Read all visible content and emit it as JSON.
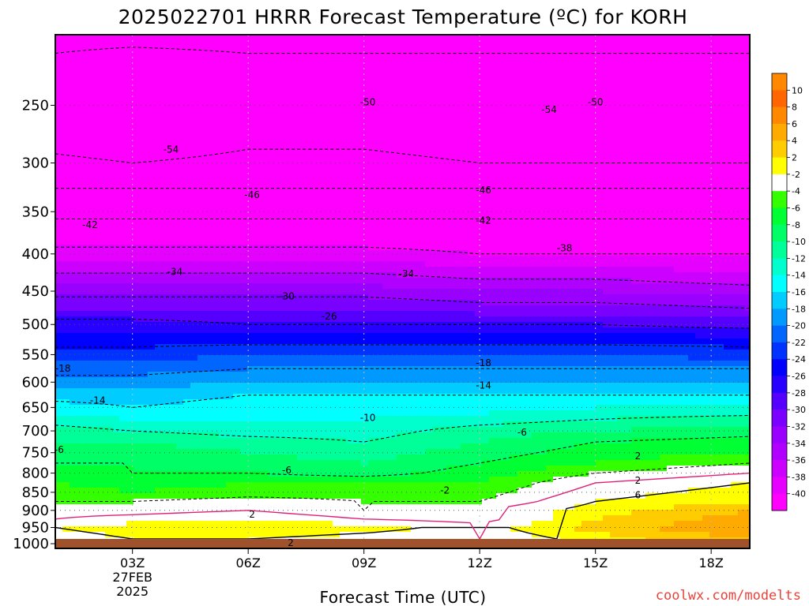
{
  "chart_data": {
    "type": "heatmap",
    "title": "2025022701 HRRR Forecast Temperature (ºC) for KORH",
    "xlabel": "Forecast Time (UTC)",
    "ylabel": "",
    "watermark": "coolwx.com/modelts",
    "x_range_hours": [
      1,
      19
    ],
    "y_range_hpa": [
      1015,
      200
    ],
    "y_scale": "log",
    "x_ticks": [
      {
        "hour": 3,
        "label": "03Z"
      },
      {
        "hour": 6,
        "label": "06Z"
      },
      {
        "hour": 9,
        "label": "09Z"
      },
      {
        "hour": 12,
        "label": "12Z"
      },
      {
        "hour": 15,
        "label": "15Z"
      },
      {
        "hour": 18,
        "label": "18Z"
      }
    ],
    "x_date_label": {
      "hour": 3,
      "lines": [
        "27FEB",
        "2025"
      ]
    },
    "y_ticks": [
      250,
      300,
      350,
      400,
      450,
      500,
      550,
      600,
      650,
      700,
      750,
      800,
      850,
      900,
      950,
      1000
    ],
    "grid": "dotted",
    "surface_pressure_hpa": 985,
    "colorbar": {
      "placement": "right",
      "levels": [
        -40,
        -38,
        -36,
        -34,
        -32,
        -30,
        -28,
        -26,
        -24,
        -22,
        -20,
        -18,
        -16,
        -14,
        -12,
        -10,
        -8,
        -6,
        -4,
        -2,
        2,
        4,
        6,
        8,
        10
      ],
      "colors": [
        "#ff00ff",
        "#e600ff",
        "#cc00ff",
        "#b000ff",
        "#9900ff",
        "#7a00ff",
        "#5500ff",
        "#2800ff",
        "#0000ff",
        "#0033ff",
        "#0066ff",
        "#0099ff",
        "#00ccff",
        "#00ffff",
        "#00ffcc",
        "#00ff99",
        "#00ff66",
        "#00ff33",
        "#33ff00",
        "#ffffff",
        "#ffff00",
        "#ffcc00",
        "#ffaa00",
        "#ff8800",
        "#ff6600"
      ],
      "top_color": "#ff8800"
    },
    "temperature_profile": {
      "pressure_hpa": [
        985,
        950,
        925,
        900,
        875,
        850,
        825,
        800,
        775,
        750,
        725,
        700,
        675,
        650,
        625,
        600,
        575,
        550,
        525,
        500,
        475,
        450,
        425,
        400,
        375,
        350,
        325,
        300,
        275,
        250,
        225,
        200
      ],
      "hours": [
        1,
        3,
        6,
        9,
        12,
        15,
        19
      ],
      "temperature_c": [
        [
          1,
          2,
          2,
          1,
          0,
          3,
          6
        ],
        [
          2,
          3,
          4,
          3,
          1,
          5,
          8
        ],
        [
          0,
          1,
          2,
          0,
          -1,
          4,
          7
        ],
        [
          -1,
          -1,
          0,
          -2,
          0,
          3,
          6
        ],
        [
          -2,
          -2,
          -1,
          -2,
          -2,
          2,
          4
        ],
        [
          -3,
          -4,
          -3,
          -3,
          -3,
          1,
          3
        ],
        [
          -4,
          -5,
          -4,
          -4,
          -4,
          0,
          2
        ],
        [
          -5,
          -6,
          -6,
          -7,
          -5,
          -2,
          0
        ],
        [
          -6,
          -6,
          -7,
          -8,
          -6,
          -4,
          -2
        ],
        [
          -6,
          -7,
          -8,
          -9,
          -7,
          -5,
          -4
        ],
        [
          -8,
          -8,
          -9,
          -10,
          -8,
          -6,
          -5
        ],
        [
          -9,
          -10,
          -11,
          -11,
          -9,
          -8,
          -7
        ],
        [
          -11,
          -12,
          -12,
          -12,
          -11,
          -10,
          -9
        ],
        [
          -13,
          -14,
          -13,
          -13,
          -13,
          -12,
          -12
        ],
        [
          -15,
          -15,
          -14,
          -14,
          -14,
          -14,
          -14
        ],
        [
          -17,
          -17,
          -16,
          -16,
          -16,
          -16,
          -16
        ],
        [
          -19,
          -19,
          -18,
          -18,
          -18,
          -18,
          -18
        ],
        [
          -21,
          -21,
          -20,
          -20,
          -20,
          -20,
          -21
        ],
        [
          -23,
          -23,
          -23,
          -23,
          -23,
          -23,
          -23
        ],
        [
          -25,
          -25,
          -26,
          -26,
          -26,
          -26,
          -27
        ],
        [
          -28,
          -28,
          -28,
          -28,
          -29,
          -29,
          -30
        ],
        [
          -31,
          -31,
          -31,
          -31,
          -32,
          -32,
          -33
        ],
        [
          -34,
          -34,
          -34,
          -34,
          -35,
          -35,
          -36
        ],
        [
          -37,
          -37,
          -37,
          -37,
          -38,
          -38,
          -38
        ],
        [
          -40,
          -40,
          -40,
          -40,
          -40,
          -40,
          -40
        ],
        [
          -43,
          -43,
          -43,
          -43,
          -43,
          -43,
          -43
        ],
        [
          -46,
          -46,
          -46,
          -46,
          -46,
          -46,
          -46
        ],
        [
          -49,
          -50,
          -49,
          -49,
          -50,
          -50,
          -50
        ],
        [
          -52,
          -53,
          -51,
          -51,
          -52,
          -53,
          -52
        ],
        [
          -52,
          -51,
          -51,
          -51,
          -51,
          -51,
          -51
        ],
        [
          -53,
          -52,
          -53,
          -53,
          -53,
          -53,
          -53
        ],
        [
          -55,
          -55,
          -55,
          -55,
          -55,
          -55,
          -55
        ]
      ]
    },
    "contour_labels": [
      {
        "label": "-50",
        "hour": 9.1,
        "hpa": 247
      },
      {
        "label": "-54",
        "hour": 13.8,
        "hpa": 253
      },
      {
        "label": "-50",
        "hour": 15.0,
        "hpa": 247
      },
      {
        "label": "-54",
        "hour": 4.0,
        "hpa": 287
      },
      {
        "label": "-46",
        "hour": 6.1,
        "hpa": 331
      },
      {
        "label": "-46",
        "hour": 12.1,
        "hpa": 326
      },
      {
        "label": "-42",
        "hour": 1.9,
        "hpa": 364
      },
      {
        "label": "-42",
        "hour": 12.1,
        "hpa": 359
      },
      {
        "label": "-38",
        "hour": 14.2,
        "hpa": 392
      },
      {
        "label": "-34",
        "hour": 4.1,
        "hpa": 422
      },
      {
        "label": "-34",
        "hour": 10.1,
        "hpa": 425
      },
      {
        "label": "-30",
        "hour": 7.0,
        "hpa": 456
      },
      {
        "label": "-26",
        "hour": 8.1,
        "hpa": 486
      },
      {
        "label": "-18",
        "hour": 1.2,
        "hpa": 573
      },
      {
        "label": "-18",
        "hour": 12.1,
        "hpa": 563
      },
      {
        "label": "-14",
        "hour": 12.1,
        "hpa": 605
      },
      {
        "label": "-14",
        "hour": 2.1,
        "hpa": 634
      },
      {
        "label": "-10",
        "hour": 9.1,
        "hpa": 670
      },
      {
        "label": "-6",
        "hour": 13.1,
        "hpa": 702
      },
      {
        "label": "-6",
        "hour": 1.1,
        "hpa": 741
      },
      {
        "label": "-6",
        "hour": 7.0,
        "hpa": 791
      },
      {
        "label": "2",
        "hour": 16.1,
        "hpa": 756
      },
      {
        "label": "-2",
        "hour": 11.1,
        "hpa": 843
      },
      {
        "label": "2",
        "hour": 16.1,
        "hpa": 817
      },
      {
        "label": "6",
        "hour": 16.1,
        "hpa": 856
      },
      {
        "label": "2",
        "hour": 6.1,
        "hpa": 910
      },
      {
        "label": "2",
        "hour": 7.1,
        "hpa": 995
      }
    ]
  }
}
